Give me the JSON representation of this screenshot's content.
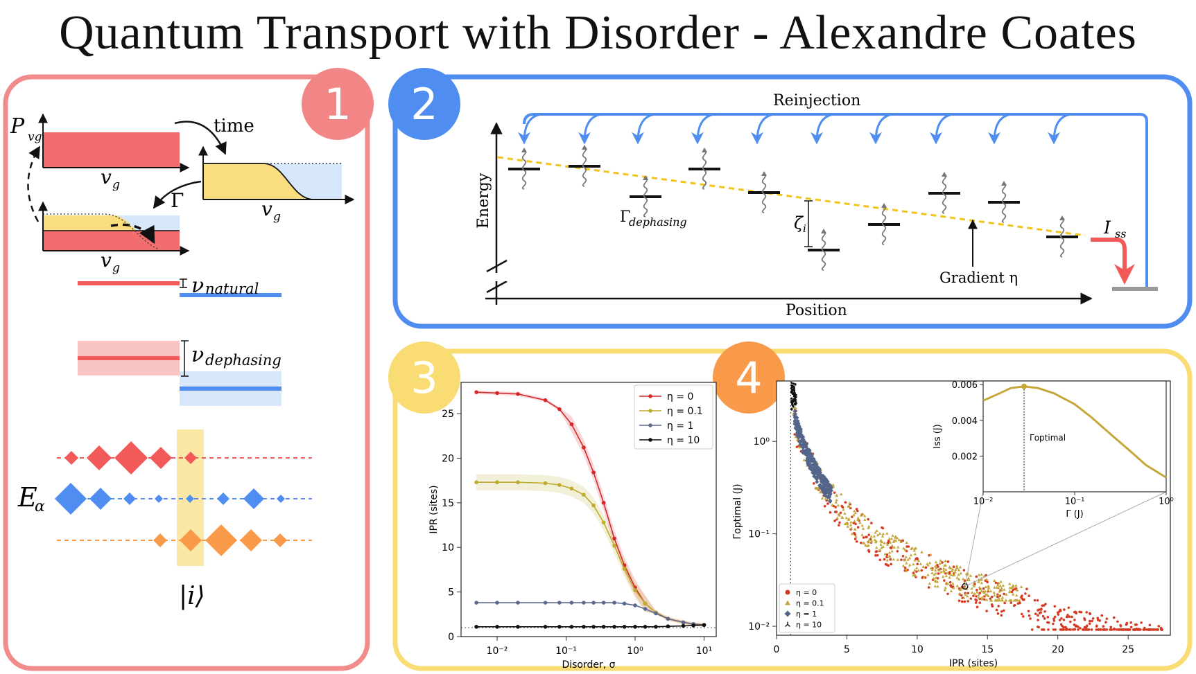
{
  "title": "Quantum Transport with Disorder - Alexandre Coates",
  "colors": {
    "red": "#f26d6d",
    "blue": "#4f8ef0",
    "yellow": "#f9dc73",
    "orange": "#f99a4b",
    "panel1": "#f28b8b",
    "panel2": "#4f8ef0",
    "panel3": "#f9dc73"
  },
  "panel1": {
    "badge": "1",
    "time_label": "time",
    "pvg_label": "P",
    "pvg_sub": "vg",
    "vg_label": "v",
    "vg_sub": "g",
    "gamma_label": "Γ",
    "nu_natural": "ν",
    "nu_natural_sub": "natural",
    "nu_dephasing": "ν",
    "nu_dephasing_sub": "dephasing",
    "e_alpha": "E",
    "e_alpha_sub": "α",
    "ket_label": "|i⟩"
  },
  "panel2": {
    "badge": "2",
    "reinjection": "Reinjection",
    "energy": "Energy",
    "position": "Position",
    "gamma_deph": "Γ",
    "gamma_deph_sub": "dephasing",
    "zeta": "ζ",
    "zeta_sub": "i",
    "gradient": "Gradient η",
    "iss": "I",
    "iss_sub": "ss"
  },
  "panel3": {
    "badge": "3",
    "chart_data": {
      "type": "line",
      "xlabel": "Disorder, σ",
      "ylabel": "IPR (sites)",
      "x_scale": "log",
      "xlim": [
        0.003,
        15
      ],
      "ylim": [
        0,
        28.5
      ],
      "xticks": [
        "10⁻²",
        "10⁻¹",
        "10⁰",
        "10¹"
      ],
      "yticks": [
        "0",
        "5",
        "10",
        "15",
        "20",
        "25"
      ],
      "x": [
        0.005,
        0.01,
        0.02,
        0.05,
        0.08,
        0.12,
        0.18,
        0.25,
        0.35,
        0.5,
        0.7,
        1.0,
        1.4,
        2.0,
        3.0,
        5.0,
        7.0,
        10.0
      ],
      "series": [
        {
          "name": "η = 0",
          "color": "#d62728",
          "values": [
            27.4,
            27.3,
            27.2,
            26.5,
            25.5,
            23.8,
            21.2,
            18.4,
            15.0,
            11.0,
            8.0,
            5.5,
            3.7,
            2.7,
            2.0,
            1.6,
            1.4,
            1.3
          ]
        },
        {
          "name": "η = 0.1",
          "color": "#bcab2d",
          "values": [
            17.3,
            17.3,
            17.3,
            17.2,
            17.0,
            16.6,
            15.9,
            14.7,
            12.8,
            10.2,
            7.6,
            5.2,
            3.7,
            2.7,
            2.0,
            1.6,
            1.4,
            1.3
          ]
        },
        {
          "name": "η = 1",
          "color": "#5a6a8c",
          "values": [
            3.8,
            3.8,
            3.8,
            3.8,
            3.8,
            3.8,
            3.8,
            3.8,
            3.8,
            3.8,
            3.7,
            3.5,
            3.1,
            2.6,
            2.0,
            1.6,
            1.4,
            1.3
          ]
        },
        {
          "name": "η = 10",
          "color": "#111111",
          "values": [
            1.1,
            1.1,
            1.1,
            1.1,
            1.1,
            1.1,
            1.1,
            1.1,
            1.1,
            1.1,
            1.1,
            1.1,
            1.1,
            1.1,
            1.15,
            1.2,
            1.25,
            1.3
          ]
        }
      ],
      "legend_position": "top-right",
      "grid": false
    }
  },
  "panel4": {
    "badge": "4",
    "chart_data": {
      "type": "scatter",
      "xlabel": "IPR (sites)",
      "ylabel": "Γoptimal (J)",
      "y_scale": "log",
      "xlim": [
        0,
        28
      ],
      "ylim": [
        0.008,
        4.5
      ],
      "xticks": [
        "0",
        "5",
        "10",
        "15",
        "20",
        "25"
      ],
      "yticks": [
        "10⁻²",
        "10⁻¹",
        "10⁰"
      ],
      "series": [
        {
          "name": "η = 0",
          "marker": "circle",
          "color": "#d43b22"
        },
        {
          "name": "η = 0.1",
          "marker": "triangle",
          "color": "#c4a63a"
        },
        {
          "name": "η = 1",
          "marker": "diamond",
          "color": "#54658c"
        },
        {
          "name": "η = 10",
          "marker": "tri",
          "color": "#111111"
        }
      ],
      "legend_position": "bottom-left",
      "inset": {
        "type": "line",
        "xlabel": "Γ (J)",
        "ylabel": "Iss (J)",
        "x_scale": "log",
        "xlim": [
          0.01,
          1.0
        ],
        "ylim": [
          0.0,
          0.0062
        ],
        "xticks": [
          "10⁻²",
          "10⁻¹",
          "10⁰"
        ],
        "yticks": [
          "0.002",
          "0.004",
          "0.006"
        ],
        "x": [
          0.01,
          0.015,
          0.02,
          0.028,
          0.04,
          0.06,
          0.1,
          0.15,
          0.25,
          0.4,
          0.6,
          1.0
        ],
        "values": [
          0.0051,
          0.0055,
          0.0058,
          0.0059,
          0.0058,
          0.0055,
          0.0049,
          0.0042,
          0.0032,
          0.0023,
          0.0015,
          0.0008
        ],
        "annotation": "Γoptimal",
        "optimal_x": 0.028
      }
    }
  }
}
